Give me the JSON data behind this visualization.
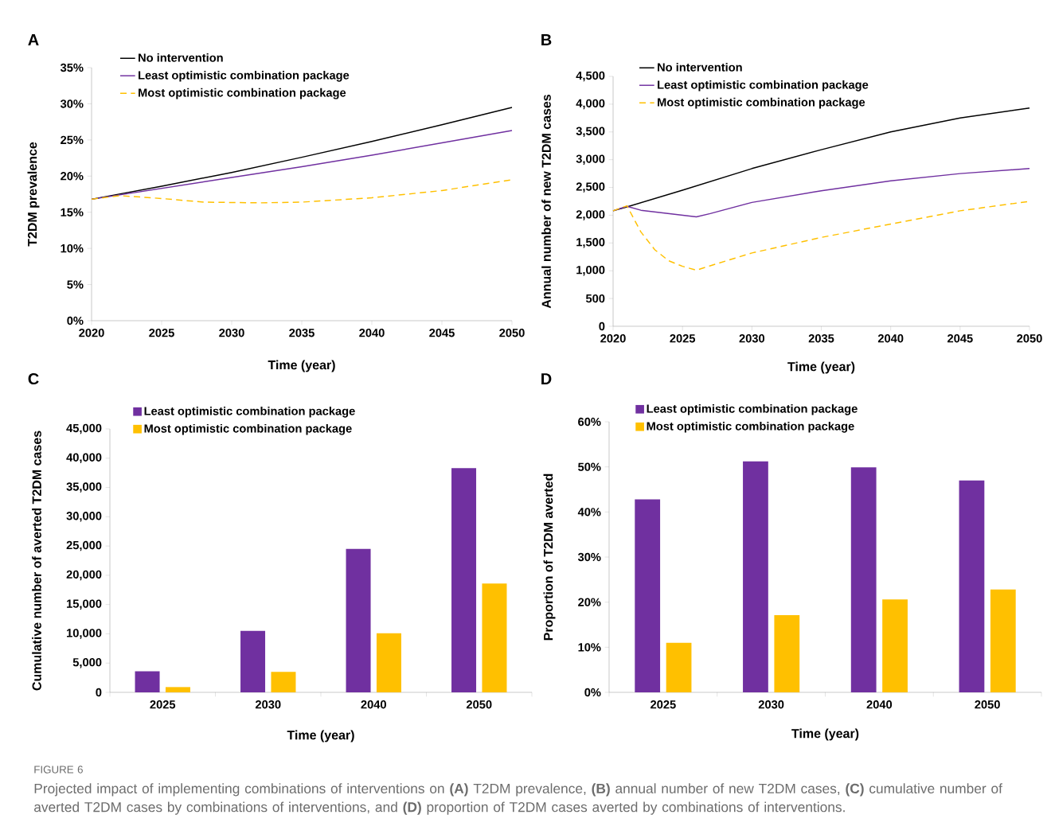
{
  "chart_data": [
    {
      "type": "line",
      "title": "A",
      "xlabel": "Time (year)",
      "ylabel": "T2DM prevalence",
      "xlim": [
        2020,
        2050
      ],
      "xticks": [
        2020,
        2025,
        2030,
        2035,
        2040,
        2045,
        2050
      ],
      "ylim": [
        0,
        35
      ],
      "yticks": [
        {
          "value": 0,
          "label": "0%"
        },
        {
          "value": 5,
          "label": "5%"
        },
        {
          "value": 10,
          "label": "10%"
        },
        {
          "value": 15,
          "label": "15%"
        },
        {
          "value": 20,
          "label": "20%"
        },
        {
          "value": 25,
          "label": "25%"
        },
        {
          "value": 30,
          "label": "30%"
        },
        {
          "value": 35,
          "label": "35%"
        }
      ],
      "legend": "top left",
      "series": [
        {
          "name": "No intervention",
          "color": "#000000",
          "x": [
            2020,
            2025,
            2030,
            2035,
            2040,
            2045,
            2050
          ],
          "values": [
            16.8,
            18.6,
            20.5,
            22.6,
            24.8,
            27.1,
            29.5
          ]
        },
        {
          "name": "Least optimistic combination package",
          "color": "#7030a0",
          "x": [
            2020,
            2025,
            2030,
            2035,
            2040,
            2045,
            2050
          ],
          "values": [
            16.8,
            18.3,
            19.8,
            21.3,
            22.9,
            24.6,
            26.3
          ]
        },
        {
          "name": "Most optimistic combination package",
          "color": "#ffc000",
          "line_style": "dashed",
          "x": [
            2020,
            2022,
            2025,
            2028,
            2032,
            2035,
            2040,
            2045,
            2050
          ],
          "values": [
            16.8,
            17.3,
            16.9,
            16.4,
            16.3,
            16.4,
            17.0,
            18.0,
            19.5
          ]
        }
      ]
    },
    {
      "type": "line",
      "title": "B",
      "xlabel": "Time (year)",
      "ylabel": "Annual number of new T2DM cases",
      "xlim": [
        2020,
        2050
      ],
      "xticks": [
        2020,
        2025,
        2030,
        2035,
        2040,
        2045,
        2050
      ],
      "ylim": [
        0,
        4500
      ],
      "yticks": [
        0,
        500,
        {
          "value": 1000,
          "label": "1,000"
        },
        {
          "value": 1500,
          "label": "1,500"
        },
        {
          "value": 2000,
          "label": "2,000"
        },
        {
          "value": 2500,
          "label": "2,500"
        },
        {
          "value": 3000,
          "label": "3,000"
        },
        {
          "value": 3500,
          "label": "3,500"
        },
        {
          "value": 4000,
          "label": "4,000"
        },
        {
          "value": 4500,
          "label": "4,500"
        }
      ],
      "legend": "top left",
      "series": [
        {
          "name": "No intervention",
          "color": "#000000",
          "x": [
            2020,
            2021,
            2025,
            2030,
            2035,
            2040,
            2045,
            2050
          ],
          "values": [
            2080,
            2150,
            2450,
            2840,
            3180,
            3500,
            3750,
            3930
          ]
        },
        {
          "name": "Least optimistic combination package",
          "color": "#7030a0",
          "x": [
            2020,
            2021,
            2022,
            2026,
            2027,
            2030,
            2035,
            2040,
            2045,
            2050
          ],
          "values": [
            2080,
            2160,
            2090,
            1970,
            2030,
            2230,
            2440,
            2620,
            2750,
            2840
          ]
        },
        {
          "name": "Most optimistic combination package",
          "color": "#ffc000",
          "line_style": "dashed",
          "x": [
            2020,
            2021,
            2022,
            2023,
            2024,
            2025,
            2026,
            2027,
            2030,
            2035,
            2040,
            2045,
            2050
          ],
          "values": [
            2080,
            2170,
            1700,
            1380,
            1180,
            1080,
            1010,
            1090,
            1320,
            1600,
            1840,
            2080,
            2250
          ]
        }
      ]
    },
    {
      "type": "bar",
      "title": "C",
      "xlabel": "Time (year)",
      "ylabel": "Cumulative number of averted T2DM cases",
      "categories": [
        "2025",
        "2030",
        "2040",
        "2050"
      ],
      "ylim": [
        0,
        45000
      ],
      "yticks": [
        0,
        {
          "value": 5000,
          "label": "5,000"
        },
        {
          "value": 10000,
          "label": "10,000"
        },
        {
          "value": 15000,
          "label": "15,000"
        },
        {
          "value": 20000,
          "label": "20,000"
        },
        {
          "value": 25000,
          "label": "25,000"
        },
        {
          "value": 30000,
          "label": "30,000"
        },
        {
          "value": 35000,
          "label": "35,000"
        },
        {
          "value": 40000,
          "label": "40,000"
        },
        {
          "value": 45000,
          "label": "45,000"
        }
      ],
      "legend": "top left",
      "series": [
        {
          "name": "Least optimistic combination package",
          "color": "#7030a0",
          "values": [
            3600,
            10500,
            24500,
            38300
          ]
        },
        {
          "name": "Most optimistic combination package",
          "color": "#ffc000",
          "values": [
            900,
            3500,
            10100,
            18600
          ]
        }
      ]
    },
    {
      "type": "bar",
      "title": "D",
      "xlabel": "Time (year)",
      "ylabel": "Proportion of T2DM averted",
      "categories": [
        "2025",
        "2030",
        "2040",
        "2050"
      ],
      "ylim": [
        0,
        60
      ],
      "yticks": [
        {
          "value": 0,
          "label": "0%"
        },
        {
          "value": 10,
          "label": "10%"
        },
        {
          "value": 20,
          "label": "20%"
        },
        {
          "value": 30,
          "label": "30%"
        },
        {
          "value": 40,
          "label": "40%"
        },
        {
          "value": 50,
          "label": "50%"
        },
        {
          "value": 60,
          "label": "60%"
        }
      ],
      "legend": "top left",
      "series": [
        {
          "name": "Least optimistic combination package",
          "color": "#7030a0",
          "values": [
            42.8,
            51.2,
            49.9,
            47.0
          ]
        },
        {
          "name": "Most optimistic combination package",
          "color": "#ffc000",
          "values": [
            11.0,
            17.1,
            20.6,
            22.8
          ]
        }
      ],
      "annotations": [
        "FIGURE 6",
        "Projected impact of implementing combinations of interventions on **(A)** T2DM prevalence, **(B)** annual number of new T2DM cases, **(C)** cumulative number of averted T2DM cases by combinations of interventions, and **(D)** proportion of T2DM cases averted by combinations of interventions."
      ]
    }
  ]
}
